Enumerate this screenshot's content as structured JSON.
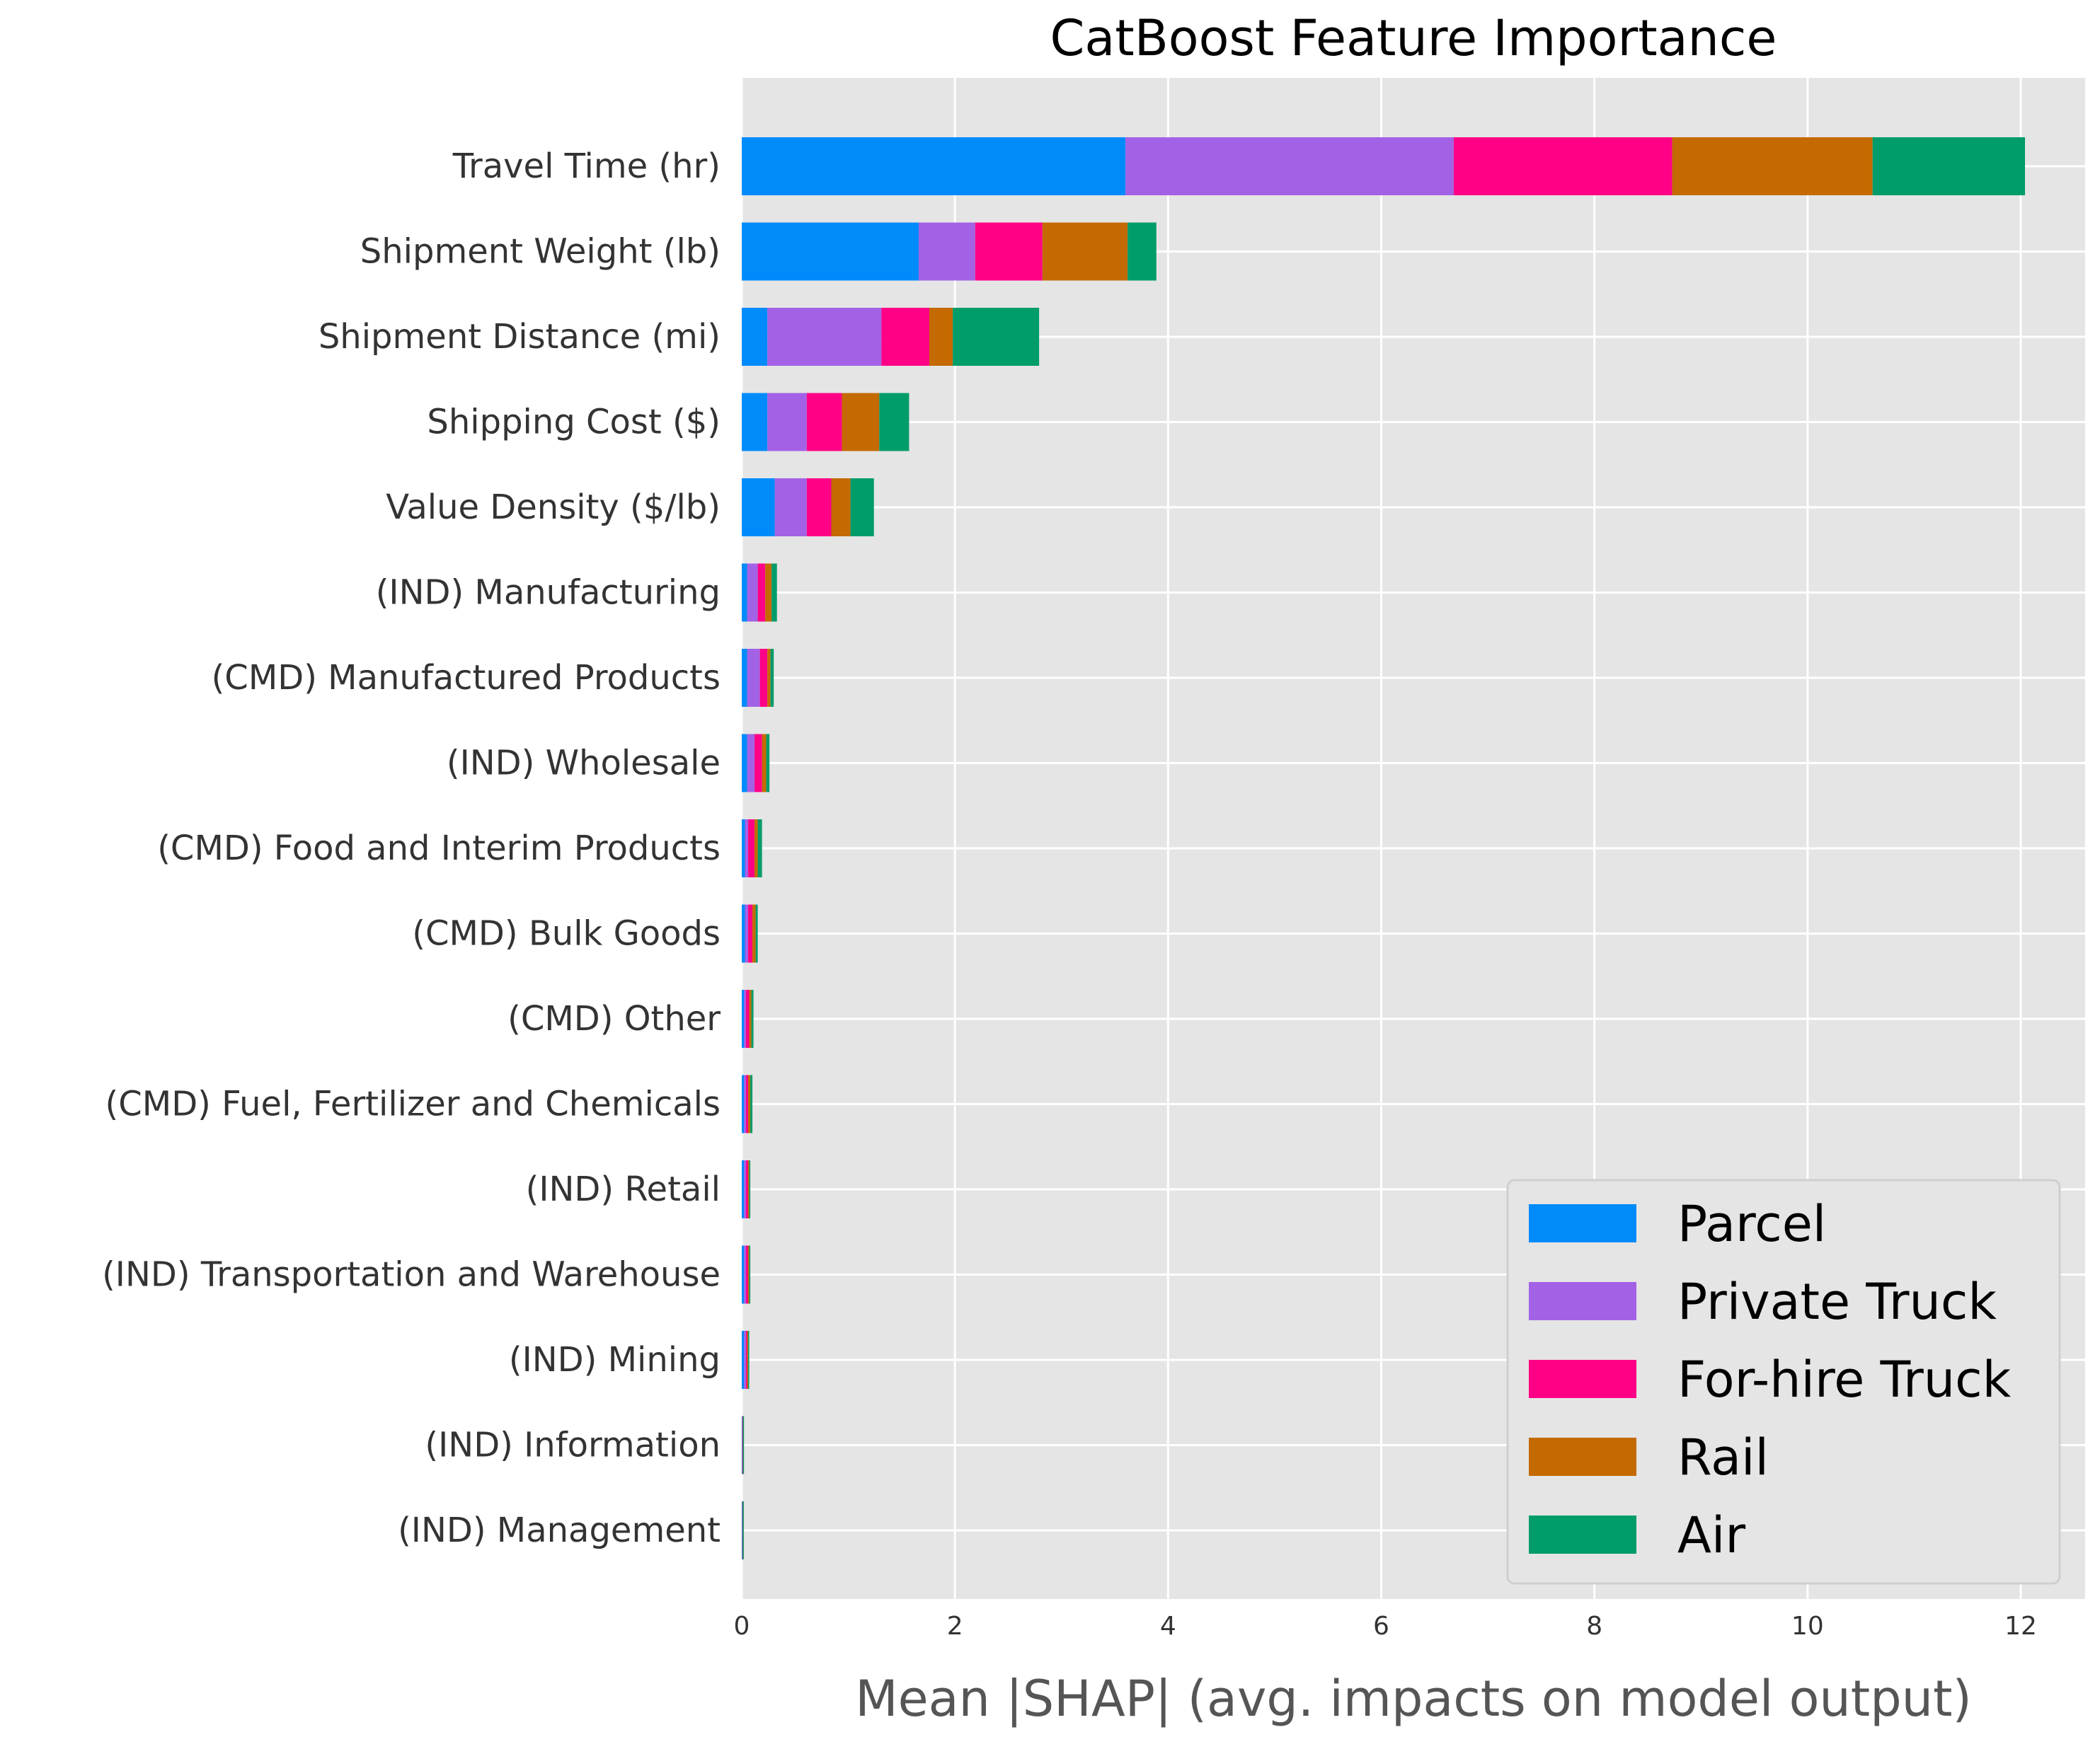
{
  "chart_data": {
    "type": "bar",
    "orientation": "horizontal",
    "stacked": true,
    "title": "CatBoost Feature Importance",
    "xlabel": "Mean |SHAP| (avg. impacts on model output)",
    "ylabel": "",
    "xlim": [
      0,
      12.6
    ],
    "xticks": [
      0,
      2,
      4,
      6,
      8,
      10,
      12
    ],
    "grid": true,
    "legend_position": "lower-right",
    "categories": [
      "Travel Time (hr)",
      "Shipment Weight (lb)",
      "Shipment Distance (mi)",
      "Shipping Cost ($)",
      "Value Density ($/lb)",
      "(IND) Manufacturing",
      "(CMD) Manufactured Products",
      "(IND) Wholesale",
      "(CMD) Food and Interim Products",
      "(CMD) Bulk Goods",
      "(CMD) Other",
      "(CMD) Fuel, Fertilizer and Chemicals",
      "(IND) Retail",
      "(IND) Transportation and Warehouse",
      "(IND) Mining",
      "(IND) Information",
      "(IND) Management"
    ],
    "series": [
      {
        "name": "Parcel",
        "color": "#008bfb",
        "values": [
          3.6,
          1.66,
          0.24,
          0.24,
          0.31,
          0.05,
          0.05,
          0.05,
          0.03,
          0.03,
          0.02,
          0.02,
          0.02,
          0.02,
          0.02,
          0.003,
          0.003
        ]
      },
      {
        "name": "Private Truck",
        "color": "#a362e6",
        "values": [
          3.08,
          0.53,
          1.07,
          0.37,
          0.3,
          0.1,
          0.12,
          0.07,
          0.03,
          0.03,
          0.02,
          0.02,
          0.02,
          0.02,
          0.02,
          0.003,
          0.003
        ]
      },
      {
        "name": "For-hire Truck",
        "color": "#ff0086",
        "values": [
          2.05,
          0.63,
          0.45,
          0.33,
          0.23,
          0.07,
          0.07,
          0.07,
          0.06,
          0.04,
          0.03,
          0.02,
          0.02,
          0.02,
          0.01,
          0.003,
          0.002
        ]
      },
      {
        "name": "Rail",
        "color": "#c46a00",
        "values": [
          1.88,
          0.8,
          0.22,
          0.35,
          0.18,
          0.06,
          0.03,
          0.04,
          0.03,
          0.03,
          0.02,
          0.02,
          0.01,
          0.01,
          0.01,
          0.002,
          0.001
        ]
      },
      {
        "name": "Air",
        "color": "#009c6a",
        "values": [
          1.43,
          0.27,
          0.81,
          0.28,
          0.22,
          0.05,
          0.03,
          0.03,
          0.04,
          0.02,
          0.02,
          0.02,
          0.01,
          0.01,
          0.01,
          0.002,
          0.001
        ]
      }
    ]
  },
  "colors": {
    "plot_background": "#e5e5e5",
    "grid": "#ffffff",
    "tick_text": "#333333",
    "xlabel_text": "#555555"
  }
}
